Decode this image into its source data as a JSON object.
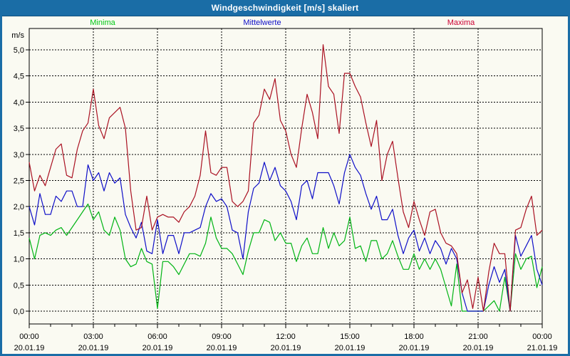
{
  "window": {
    "title": "Windgeschwindigkeit [m/s] skaliert"
  },
  "colors": {
    "title_bar_bg": "#1a6da6",
    "frame": "#1a6da6",
    "background": "#fafaf2",
    "grid": "#000000",
    "text": "#000000"
  },
  "chart_data": {
    "type": "line",
    "title": "Windgeschwindigkeit [m/s] skaliert",
    "xlabel": "",
    "ylabel": "m/s",
    "ylim": [
      0,
      5
    ],
    "grid": "dashed",
    "legend_position": "top",
    "y_ticks": [
      {
        "value": 0,
        "label": "0,0"
      },
      {
        "value": 0.5,
        "label": "0,5"
      },
      {
        "value": 1,
        "label": "1,0"
      },
      {
        "value": 1.5,
        "label": "1,5"
      },
      {
        "value": 2,
        "label": "2,0"
      },
      {
        "value": 2.5,
        "label": "2,5"
      },
      {
        "value": 3,
        "label": "3,0"
      },
      {
        "value": 3.5,
        "label": "3,5"
      },
      {
        "value": 4,
        "label": "4,0"
      },
      {
        "value": 4.5,
        "label": "4,5"
      },
      {
        "value": 5,
        "label": "5,0"
      }
    ],
    "x_axis": {
      "start_hour": 0,
      "end_hour": 24,
      "step_hours": 0.25,
      "minor_tick_hours": 1,
      "major_tick_hours": 3
    },
    "x_ticks": [
      {
        "hours": 0,
        "time": "00:00",
        "date": "20.01.19"
      },
      {
        "hours": 3,
        "time": "03:00",
        "date": "20.01.19"
      },
      {
        "hours": 6,
        "time": "06:00",
        "date": "20.01.19"
      },
      {
        "hours": 9,
        "time": "09:00",
        "date": "20.01.19"
      },
      {
        "hours": 12,
        "time": "12:00",
        "date": "20.01.19"
      },
      {
        "hours": 15,
        "time": "15:00",
        "date": "20.01.19"
      },
      {
        "hours": 18,
        "time": "18:00",
        "date": "20.01.19"
      },
      {
        "hours": 21,
        "time": "21:00",
        "date": "20.01.19"
      },
      {
        "hours": 24,
        "time": "00:00",
        "date": "21.01.19"
      }
    ],
    "series": [
      {
        "name": "Minima",
        "color": "#00b414",
        "label_color": "#00c814",
        "values": [
          1.4,
          1.0,
          1.45,
          1.5,
          1.45,
          1.55,
          1.6,
          1.45,
          1.6,
          1.75,
          1.9,
          2.05,
          1.75,
          1.9,
          1.55,
          1.45,
          1.8,
          1.55,
          1.0,
          0.85,
          0.9,
          1.2,
          0.95,
          0.9,
          0.05,
          0.95,
          0.95,
          0.85,
          0.7,
          0.9,
          1.1,
          1.1,
          1.05,
          1.3,
          1.8,
          1.4,
          1.2,
          1.2,
          1.1,
          0.9,
          0.7,
          1.15,
          1.5,
          1.5,
          1.75,
          1.7,
          1.35,
          1.5,
          1.3,
          1.3,
          0.95,
          1.25,
          1.4,
          1.1,
          1.1,
          1.6,
          1.2,
          1.5,
          1.25,
          1.35,
          1.8,
          1.2,
          1.25,
          0.95,
          1.35,
          1.35,
          1.0,
          1.1,
          1.35,
          1.05,
          0.8,
          0.8,
          1.1,
          0.8,
          1.0,
          0.8,
          1.0,
          0.8,
          0.45,
          0.1,
          0.9,
          0.0,
          0.0,
          0.0,
          0.0,
          0.0,
          0.1,
          0.2,
          0.0,
          0.65,
          0.0,
          1.1,
          0.8,
          1.0,
          1.05,
          0.45,
          0.85
        ]
      },
      {
        "name": "Mittelwerte",
        "color": "#0f0fc8",
        "label_color": "#0f0fc8",
        "values": [
          2.0,
          1.65,
          2.25,
          1.85,
          1.85,
          2.2,
          2.1,
          2.3,
          2.3,
          2.0,
          2.0,
          2.8,
          2.5,
          2.65,
          2.3,
          2.65,
          2.45,
          2.55,
          1.85,
          1.6,
          1.4,
          1.7,
          1.15,
          1.1,
          1.75,
          1.1,
          1.45,
          1.45,
          1.1,
          1.5,
          1.5,
          1.55,
          1.6,
          2.0,
          2.25,
          2.1,
          2.15,
          2.0,
          1.55,
          1.5,
          1.0,
          1.9,
          2.35,
          2.45,
          2.85,
          2.5,
          2.75,
          2.4,
          2.3,
          2.1,
          1.75,
          2.4,
          2.5,
          2.15,
          2.65,
          2.65,
          2.65,
          2.4,
          2.05,
          2.65,
          3.0,
          2.75,
          2.6,
          2.25,
          1.95,
          2.2,
          1.75,
          1.75,
          1.95,
          1.45,
          1.1,
          1.4,
          1.55,
          1.15,
          1.4,
          1.1,
          1.35,
          1.2,
          0.9,
          1.2,
          1.0,
          0.35,
          0.0,
          0.0,
          0.0,
          0.0,
          0.5,
          0.85,
          0.55,
          0.8,
          0.0,
          1.45,
          1.05,
          1.25,
          1.45,
          0.8,
          0.5
        ]
      },
      {
        "name": "Maxima",
        "color": "#aa1122",
        "label_color": "#cc0033",
        "values": [
          2.85,
          2.3,
          2.6,
          2.4,
          2.75,
          3.1,
          3.2,
          2.6,
          2.55,
          3.1,
          3.45,
          3.6,
          4.25,
          3.55,
          3.3,
          3.7,
          3.8,
          3.9,
          3.5,
          2.3,
          1.55,
          1.6,
          2.2,
          1.55,
          1.8,
          1.85,
          1.8,
          1.8,
          1.7,
          1.9,
          2.0,
          2.2,
          2.6,
          3.45,
          2.65,
          2.6,
          2.75,
          2.75,
          2.1,
          2.0,
          2.1,
          2.3,
          3.6,
          3.75,
          4.25,
          4.05,
          4.45,
          3.65,
          3.45,
          3.0,
          2.75,
          3.5,
          4.15,
          3.8,
          3.3,
          5.1,
          4.3,
          4.15,
          3.4,
          4.55,
          4.55,
          4.3,
          4.1,
          3.6,
          3.15,
          3.65,
          2.5,
          3.0,
          3.25,
          2.55,
          1.9,
          1.6,
          2.1,
          1.75,
          1.45,
          1.9,
          1.95,
          1.5,
          1.3,
          1.25,
          1.1,
          0.35,
          0.6,
          0.05,
          0.65,
          0.0,
          0.75,
          1.3,
          1.1,
          1.1,
          0.0,
          1.55,
          1.6,
          1.95,
          2.2,
          1.45,
          1.55
        ]
      }
    ]
  }
}
